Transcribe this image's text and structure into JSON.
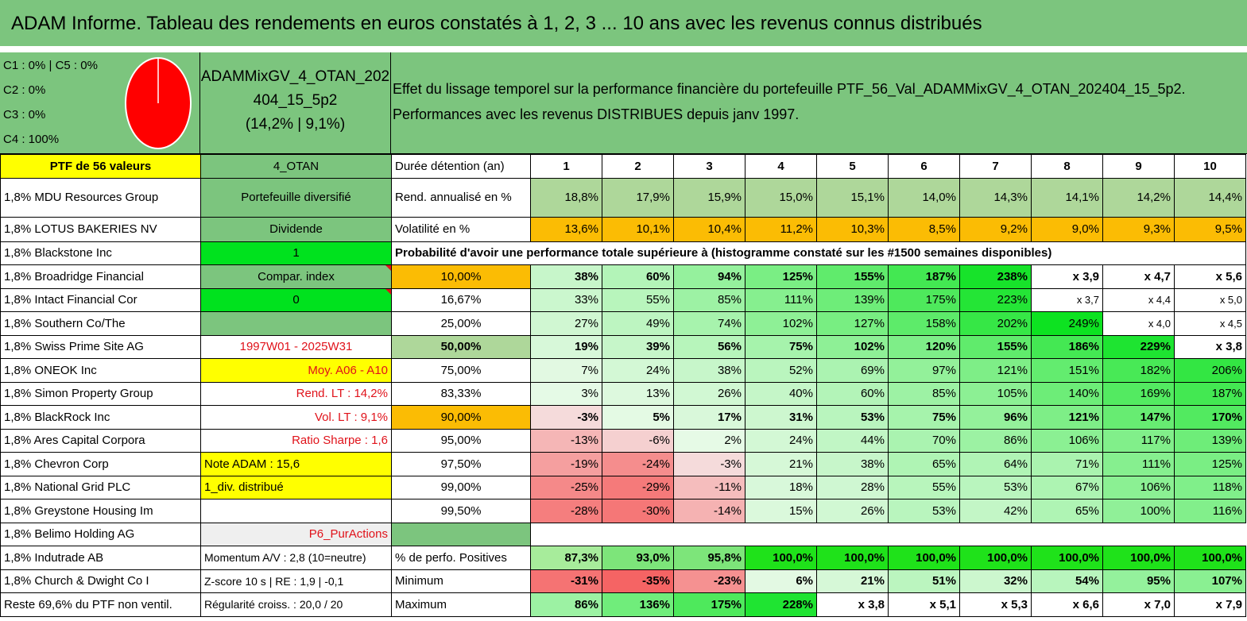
{
  "title": "ADAM Informe. Tableau des rendements en euros constatés à 1, 2, 3 ... 10 ans avec les revenus connus distribués",
  "clusters": {
    "line1": "C1 : 0% | C5 : 0%",
    "line2": "C2 : 0%",
    "line3": "C3 : 0%",
    "line4": "C4 : 100%"
  },
  "pie": {
    "color": "#ff0000",
    "share_c4": 100
  },
  "portfolio": {
    "name1": "ADAMMixGV_4_OTAN_202",
    "name2": "404_15_5p2",
    "perf": "(14,2% | 9,1%)"
  },
  "effect": {
    "line1": "Effet du lissage temporel sur la performance financière du portefeuille PTF_56_Val_ADAMMixGV_4_OTAN_202404_15_5p2.",
    "line2": "Performances avec les revenus DISTRIBUES depuis janv 1997."
  },
  "header": {
    "ptf": "PTF de 56 valeurs",
    "code": "4_OTAN",
    "duree": "Durée détention (an)",
    "years": [
      "1",
      "2",
      "3",
      "4",
      "5",
      "6",
      "7",
      "8",
      "9",
      "10"
    ]
  },
  "rend": {
    "label": "Rend. annualisé en %",
    "values": [
      "18,8%",
      "17,9%",
      "15,9%",
      "15,0%",
      "15,1%",
      "14,0%",
      "14,3%",
      "14,1%",
      "14,2%",
      "14,4%"
    ]
  },
  "vol": {
    "label": "Volatilité en %",
    "values": [
      "13,6%",
      "10,1%",
      "10,4%",
      "11,2%",
      "10,3%",
      "8,5%",
      "9,2%",
      "9,0%",
      "9,3%",
      "9,5%"
    ]
  },
  "proba_title": "Probabilité d'avoir une performance totale supérieure à (histogramme constaté sur les #1500 semaines disponibles)",
  "stocks": [
    "1,8% MDU Resources Group",
    "1,8% LOTUS BAKERIES NV",
    "1,8% Blackstone Inc",
    "1,8% Broadridge Financial",
    "1,8% Intact Financial Cor",
    "1,8% Southern Co/The",
    "1,8% Swiss Prime Site AG",
    "1,8% ONEOK Inc",
    "1,8% Simon Property Group",
    "1,8% BlackRock Inc",
    "1,8% Ares Capital Corpora",
    "1,8% Chevron Corp",
    "1,8% National Grid PLC",
    "1,8% Greystone Housing Im",
    "1,8% Belimo Holding AG",
    "1,8% Indutrade AB",
    "1,8% Church & Dwight Co I",
    "Reste 69,6% du PTF non ventil."
  ],
  "info": {
    "portefeuille": "Portefeuille diversifié",
    "dividende": "Dividende",
    "one": "1",
    "compar": "Compar. index",
    "zero": "0",
    "period": "1997W01 - 2025W31",
    "moy": "Moy. A06 - A10",
    "rendlt": "Rend. LT : 14,2%",
    "vollt": "Vol. LT : 9,1%",
    "sharpe": "Ratio Sharpe : 1,6",
    "note": "Note ADAM : 15,6",
    "div": "1_div. distribué",
    "p6": "P6_PurActions",
    "momentum": "Momentum A/V : 2,8 (10=neutre)",
    "zscore": "Z-score 10 s | RE : 1,9 | -0,1",
    "regularite": "Régularité croiss. : 20,0 / 20"
  },
  "proba": [
    {
      "p": "10,00%",
      "values": [
        "38%",
        "60%",
        "94%",
        "125%",
        "155%",
        "187%",
        "238%",
        "x 3,9",
        "x 4,7",
        "x 5,6"
      ]
    },
    {
      "p": "16,67%",
      "values": [
        "33%",
        "55%",
        "85%",
        "111%",
        "139%",
        "175%",
        "223%",
        "x 3,7",
        "x 4,4",
        "x 5,0"
      ]
    },
    {
      "p": "25,00%",
      "values": [
        "27%",
        "49%",
        "74%",
        "102%",
        "127%",
        "158%",
        "202%",
        "249%",
        "x 4,0",
        "x 4,5"
      ]
    },
    {
      "p": "50,00%",
      "values": [
        "19%",
        "39%",
        "56%",
        "75%",
        "102%",
        "120%",
        "155%",
        "186%",
        "229%",
        "x 3,8"
      ]
    },
    {
      "p": "75,00%",
      "values": [
        "7%",
        "24%",
        "38%",
        "52%",
        "69%",
        "97%",
        "121%",
        "151%",
        "182%",
        "206%"
      ]
    },
    {
      "p": "83,33%",
      "values": [
        "3%",
        "13%",
        "26%",
        "40%",
        "60%",
        "85%",
        "105%",
        "140%",
        "169%",
        "187%"
      ]
    },
    {
      "p": "90,00%",
      "values": [
        "-3%",
        "5%",
        "17%",
        "31%",
        "53%",
        "75%",
        "96%",
        "121%",
        "147%",
        "170%"
      ]
    },
    {
      "p": "95,00%",
      "values": [
        "-13%",
        "-6%",
        "2%",
        "24%",
        "44%",
        "70%",
        "86%",
        "106%",
        "117%",
        "139%"
      ]
    },
    {
      "p": "97,50%",
      "values": [
        "-19%",
        "-24%",
        "-3%",
        "21%",
        "38%",
        "65%",
        "64%",
        "71%",
        "111%",
        "125%"
      ]
    },
    {
      "p": "99,00%",
      "values": [
        "-25%",
        "-29%",
        "-11%",
        "18%",
        "28%",
        "55%",
        "53%",
        "67%",
        "106%",
        "118%"
      ]
    },
    {
      "p": "99,50%",
      "values": [
        "-28%",
        "-30%",
        "-14%",
        "15%",
        "26%",
        "53%",
        "42%",
        "65%",
        "100%",
        "116%"
      ]
    }
  ],
  "positives": {
    "label": "% de perfo. Positives",
    "values": [
      "87,3%",
      "93,0%",
      "95,8%",
      "100,0%",
      "100,0%",
      "100,0%",
      "100,0%",
      "100,0%",
      "100,0%",
      "100,0%"
    ]
  },
  "minimum": {
    "label": "Minimum",
    "values": [
      "-31%",
      "-35%",
      "-23%",
      "6%",
      "21%",
      "51%",
      "32%",
      "54%",
      "95%",
      "107%"
    ]
  },
  "maximum": {
    "label": "Maximum",
    "values": [
      "86%",
      "136%",
      "175%",
      "228%",
      "x 3,8",
      "x 5,1",
      "x 5,3",
      "x 6,6",
      "x 7,0",
      "x 7,9"
    ]
  }
}
